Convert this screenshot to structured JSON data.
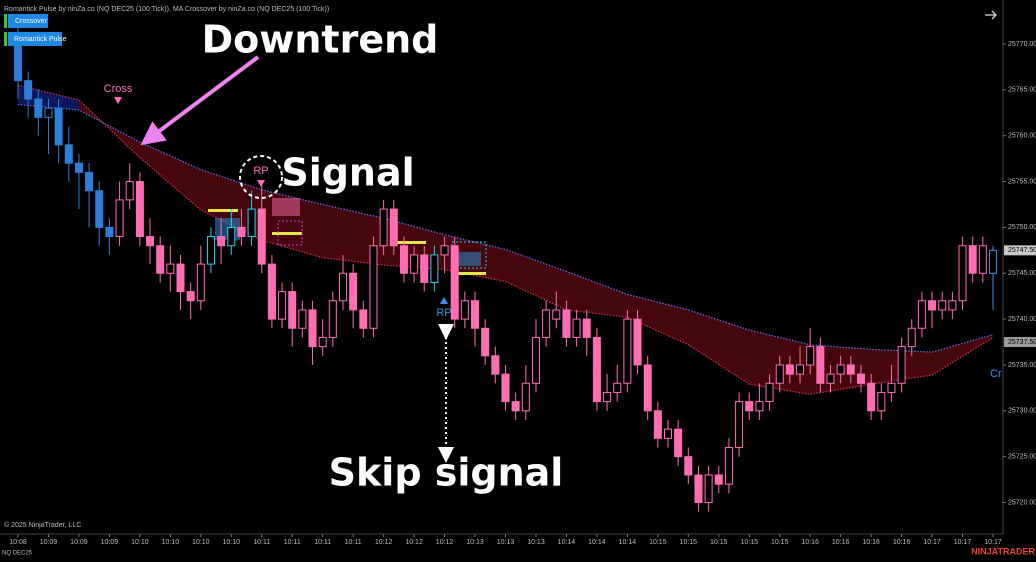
{
  "window": {
    "title": "Romantick Pulse by ninZa.co (NQ DEC25 (100 Tick)), MA Crossover by ninZa.co (NQ DEC25 (100 Tick))",
    "buttons": [
      "Crossover",
      "Romantick Pulse"
    ],
    "copyright": "© 2025 NinjaTrader, LLC",
    "instrument": "NQ DEC25",
    "brand": "NINJATRADER"
  },
  "chart_data": {
    "type": "candlestick",
    "categories": [
      "10:08",
      null,
      null,
      "10:09",
      null,
      null,
      "10:09",
      null,
      null,
      "10:09",
      null,
      null,
      "10:10",
      null,
      null,
      "10:10",
      null,
      null,
      "10:10",
      null,
      null,
      "10:10",
      null,
      null,
      "10:11",
      null,
      null,
      "10:11",
      null,
      null,
      "10:11",
      null,
      null,
      "10:11",
      null,
      null,
      "10:12",
      null,
      null,
      "10:12",
      null,
      null,
      "10:12",
      null,
      null,
      "10:13",
      null,
      null,
      "10:13",
      null,
      null,
      "10:13",
      null,
      null,
      "10:14",
      null,
      null,
      "10:14",
      null,
      null,
      "10:14",
      null,
      null,
      "10:15",
      null,
      null,
      "10:15",
      null,
      null,
      "10:15",
      null,
      null,
      "10:15",
      null,
      null,
      "10:15",
      null,
      null,
      "10:16",
      null,
      null,
      "10:16",
      null,
      null,
      "10:16",
      null,
      null,
      "10:16",
      null,
      null,
      "10:17",
      null,
      null,
      "10:17",
      null,
      null,
      "10:17"
    ],
    "open": [
      25771,
      25766,
      25764,
      25762,
      25763,
      25759,
      25757,
      25756,
      25754,
      25750,
      25749,
      25753,
      25755,
      25749,
      25748,
      25745,
      25746,
      25743,
      25742,
      25746,
      25749,
      25748,
      25750,
      25749,
      25752,
      25746,
      25740,
      25743,
      25739,
      25741,
      25737,
      25738,
      25742,
      25745,
      25741,
      25739,
      25748,
      25752,
      25748,
      25745,
      25747,
      25744,
      25747,
      25748,
      25740,
      25742,
      25739,
      25736,
      25734,
      25731,
      25730,
      25733,
      25738,
      25740,
      25741,
      25738,
      25740,
      25738,
      25731,
      25732,
      25733,
      25740,
      25735,
      25730,
      25727,
      25728,
      25725,
      25723,
      25720,
      25723,
      25722,
      25726,
      25731,
      25730,
      25731,
      25733,
      25735,
      25734,
      25735,
      25737,
      25733,
      25734,
      25735,
      25734,
      25733,
      25730,
      25732,
      25733,
      25737,
      25739,
      25742,
      25741,
      25741,
      25742,
      25748,
      25745,
      25745
    ],
    "high": [
      25772,
      25767,
      25765,
      25764,
      25764,
      25761,
      25758,
      25757,
      25755,
      25751,
      25755,
      25757,
      25756,
      25751,
      25749,
      25748,
      25747,
      25744,
      25748,
      25750,
      25751,
      25752,
      25752,
      25754,
      25755,
      25747,
      25744,
      25744,
      25742,
      25742,
      25740,
      25743,
      25747,
      25746,
      25742,
      25749,
      25753,
      25753,
      25749,
      25748,
      25748,
      25748,
      25749,
      25749,
      25743,
      25743,
      25740,
      25737,
      25735,
      25732,
      25735,
      25740,
      25742,
      25743,
      25742,
      25741,
      25741,
      25739,
      25734,
      25735,
      25741,
      25741,
      25736,
      25731,
      25729,
      25729,
      25726,
      25724,
      25724,
      25724,
      25727,
      25732,
      25732,
      25733,
      25734,
      25736,
      25736,
      25737,
      25739,
      25738,
      25735,
      25736,
      25736,
      25735,
      25734,
      25733,
      25735,
      25738,
      25740,
      25743,
      25743,
      25743,
      25743,
      25749,
      25749,
      25749,
      25748
    ],
    "low": [
      25764,
      25762,
      25760,
      25758,
      25757,
      25755,
      25752,
      25750,
      25748,
      25747,
      25748,
      25752,
      25748,
      25746,
      25744,
      25743,
      25741,
      25740,
      25741,
      25745,
      25746,
      25747,
      25748,
      25748,
      25745,
      25739,
      25739,
      25737,
      25738,
      25735,
      25736,
      25737,
      25741,
      25739,
      25738,
      25738,
      25747,
      25747,
      25744,
      25744,
      25743,
      25743,
      25745,
      25739,
      25739,
      25737,
      25735,
      25733,
      25730,
      25729,
      25729,
      25732,
      25737,
      25739,
      25737,
      25737,
      25736,
      25730,
      25730,
      25731,
      25732,
      25734,
      25729,
      25726,
      25726,
      25724,
      25722,
      25719,
      25719,
      25721,
      25721,
      25725,
      25729,
      25729,
      25730,
      25732,
      25733,
      25733,
      25734,
      25732,
      25732,
      25733,
      25733,
      25732,
      25729,
      25729,
      25731,
      25732,
      25736,
      25738,
      25739,
      25740,
      25740,
      25741,
      25744,
      25744,
      25741
    ],
    "close": [
      25766,
      25764,
      25762,
      25763,
      25759,
      25757,
      25756,
      25754,
      25750,
      25749,
      25753,
      25755,
      25749,
      25748,
      25745,
      25746,
      25743,
      25742,
      25746,
      25749,
      25748,
      25750,
      25749,
      25752,
      25746,
      25740,
      25743,
      25739,
      25741,
      25737,
      25738,
      25742,
      25745,
      25741,
      25739,
      25748,
      25752,
      25748,
      25745,
      25747,
      25744,
      25747,
      25748,
      25740,
      25742,
      25739,
      25736,
      25734,
      25731,
      25730,
      25733,
      25738,
      25741,
      25741,
      25738,
      25740,
      25738,
      25731,
      25732,
      25733,
      25740,
      25735,
      25730,
      25727,
      25728,
      25725,
      25723,
      25720,
      25723,
      25722,
      25726,
      25731,
      25730,
      25731,
      25733,
      25735,
      25734,
      25735,
      25737,
      25733,
      25734,
      25735,
      25734,
      25733,
      25730,
      25732,
      25733,
      25737,
      25739,
      25742,
      25741,
      25742,
      25742,
      25748,
      25745,
      25748,
      25747.5
    ],
    "colors": [
      "#2f7fd8",
      "#2f7fd8",
      "#2f7fd8",
      "#2f7fd8",
      "#2f7fd8",
      "#2f7fd8",
      "#2f7fd8",
      "#2f7fd8",
      "#2f7fd8",
      "#2f7fd8",
      "#ff6eb4",
      "#ff6eb4",
      "#ff6eb4",
      "#ff6eb4",
      "#ff6eb4",
      "#ff6eb4",
      "#ff6eb4",
      "#ff6eb4",
      "#ff6eb4",
      "#22d3ee",
      "#ff6eb4",
      "#22d3ee",
      "#ff6eb4",
      "#22d3ee",
      "#ff6eb4",
      "#ff6eb4",
      "#ff6eb4",
      "#ff6eb4",
      "#ff6eb4",
      "#ff6eb4",
      "#ff6eb4",
      "#ff6eb4",
      "#ff6eb4",
      "#ff6eb4",
      "#ff6eb4",
      "#ff6eb4",
      "#ff6eb4",
      "#ff6eb4",
      "#ff6eb4",
      "#ff6eb4",
      "#ff6eb4",
      "#22d3ee",
      "#ff6eb4",
      "#ff6eb4",
      "#ff6eb4",
      "#ff6eb4",
      "#ff6eb4",
      "#ff6eb4",
      "#ff6eb4",
      "#ff6eb4",
      "#ff6eb4",
      "#ff6eb4",
      "#ff6eb4",
      "#ff6eb4",
      "#ff6eb4",
      "#ff6eb4",
      "#ff6eb4",
      "#ff6eb4",
      "#ff6eb4",
      "#ff6eb4",
      "#ff6eb4",
      "#ff6eb4",
      "#ff6eb4",
      "#ff6eb4",
      "#ff6eb4",
      "#ff6eb4",
      "#ff6eb4",
      "#ff6eb4",
      "#ff6eb4",
      "#ff6eb4",
      "#ff6eb4",
      "#ff6eb4",
      "#ff6eb4",
      "#ff6eb4",
      "#ff6eb4",
      "#ff6eb4",
      "#ff6eb4",
      "#ff6eb4",
      "#ff6eb4",
      "#ff6eb4",
      "#ff6eb4",
      "#ff6eb4",
      "#ff6eb4",
      "#ff6eb4",
      "#ff6eb4",
      "#ff6eb4",
      "#ff6eb4",
      "#ff6eb4",
      "#ff6eb4",
      "#ff6eb4",
      "#ff6eb4",
      "#ff6eb4",
      "#ff6eb4",
      "#ff6eb4",
      "#ff6eb4",
      "#ff6eb4",
      "#3d8ee8"
    ],
    "series": [
      {
        "color": "#6070ff",
        "x": [
          0,
          6,
          12,
          18,
          24,
          30,
          36,
          42,
          48,
          54,
          60,
          66,
          72,
          78,
          84,
          90,
          96
        ],
        "values": [
          25763.4,
          25762.8,
          25759.3,
          25756.3,
          25754.1,
          25752.5,
          25751.0,
          25749.2,
          25747.6,
          25745.2,
          25742.7,
          25741.0,
          25738.8,
          25737.2,
          25736.7,
          25736.4,
          25738.3
        ]
      },
      {
        "color": "#e0304a",
        "x": [
          0,
          6,
          12,
          18,
          24,
          30,
          36,
          42,
          48,
          54,
          60,
          66,
          72,
          78,
          84,
          90,
          96
        ],
        "values": [
          25765.5,
          25763.9,
          25757.6,
          25751.9,
          25748.6,
          25746.7,
          25745.9,
          25745.4,
          25744.1,
          25741.0,
          25740.2,
          25737.2,
          25732.9,
          25731.8,
          25732.9,
          25733.9,
          25738.0
        ]
      }
    ],
    "ylim": [
      25717,
      25774.8
    ],
    "yticks": [
      {
        "value": 25720,
        "label": "25720.00"
      },
      {
        "value": 25725,
        "label": "25725.00"
      },
      {
        "value": 25730,
        "label": "25730.00"
      },
      {
        "value": 25735,
        "label": "25735.00"
      },
      {
        "value": 25740,
        "label": "25740.00"
      },
      {
        "value": 25745,
        "label": "25745.00"
      },
      {
        "value": 25750,
        "label": "25750.00"
      },
      {
        "value": 25755,
        "label": "25755.00"
      },
      {
        "value": 25760,
        "label": "25760.00"
      },
      {
        "value": 25765,
        "label": "25765.00"
      },
      {
        "value": 25770,
        "label": "25770.00"
      }
    ],
    "price_markers": [
      {
        "value": 25747.5,
        "label": "25747.50",
        "color": "#c8c8c8"
      },
      {
        "value": 25737.5,
        "label": "25737.50",
        "color": "#9a9a9a"
      }
    ],
    "annotations": {
      "downtrend": "Downtrend",
      "signal": "Signal",
      "skip": "Skip signal",
      "cross": "Cross",
      "rp_sell": "RP",
      "rp_buy": "RP",
      "cross_right": "Cr"
    }
  }
}
